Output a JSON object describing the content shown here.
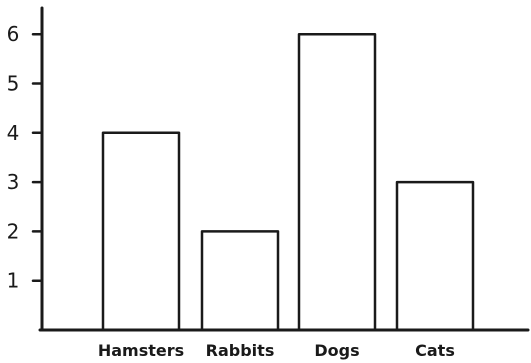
{
  "chart_data": {
    "type": "bar",
    "categories": [
      "Hamsters",
      "Rabbits",
      "Dogs",
      "Cats"
    ],
    "values": [
      4,
      2,
      6,
      3
    ],
    "title": "",
    "xlabel": "",
    "ylabel": "",
    "ylim": [
      0,
      6.6
    ],
    "yticks": [
      1,
      2,
      3,
      4,
      5,
      6
    ],
    "grid": false,
    "colors": {
      "stroke": "#1a1a1a",
      "fill": "#ffffff"
    }
  }
}
